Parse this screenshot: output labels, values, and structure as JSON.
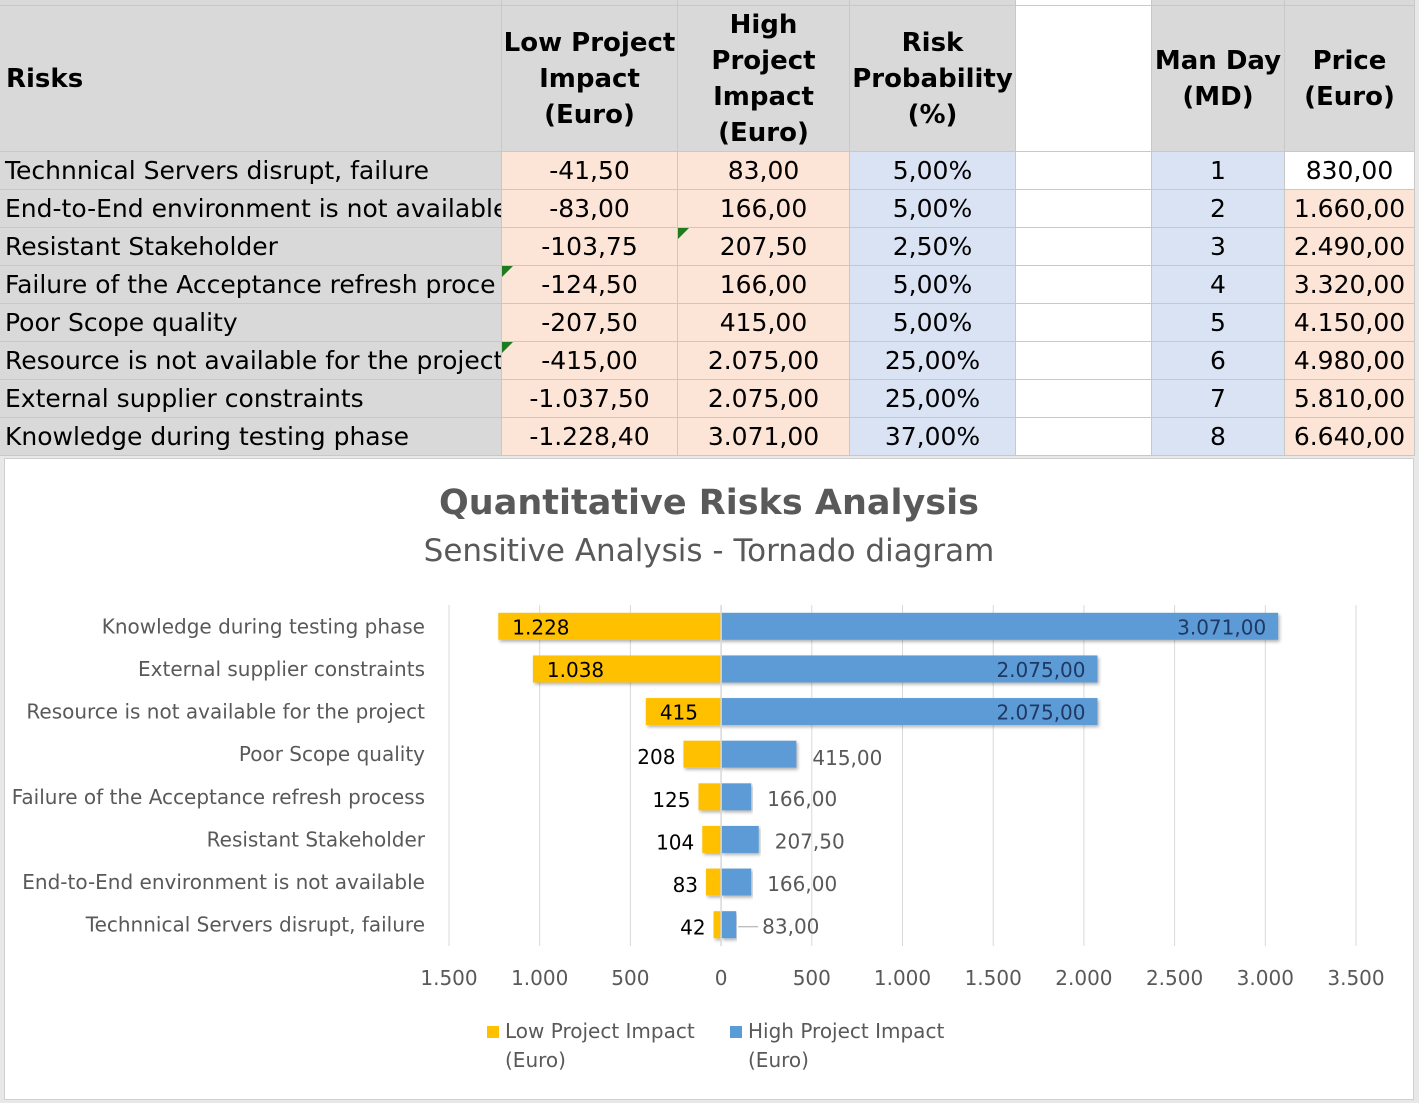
{
  "table": {
    "headers": {
      "risks": "Risks",
      "low": "Low Project Impact (Euro)",
      "high": "High Project Impact (Euro)",
      "prob": "Risk Probability (%)",
      "md": "Man Day (MD)",
      "price": "Price (Euro)"
    },
    "rows": [
      {
        "risk": "Technnical Servers disrupt, failure",
        "low": "-41,50",
        "high": "83,00",
        "prob": "5,00%",
        "md": "1",
        "price": "830,00"
      },
      {
        "risk": "End-to-End environment is not available",
        "low": "-83,00",
        "high": "166,00",
        "prob": "5,00%",
        "md": "2",
        "price": "1.660,00"
      },
      {
        "risk": "Resistant Stakeholder",
        "low": "-103,75",
        "high": "207,50",
        "prob": "2,50%",
        "md": "3",
        "price": "2.490,00"
      },
      {
        "risk": "Failure of the Acceptance refresh proce",
        "low": "-124,50",
        "high": "166,00",
        "prob": "5,00%",
        "md": "4",
        "price": "3.320,00"
      },
      {
        "risk": "Poor Scope quality",
        "low": "-207,50",
        "high": "415,00",
        "prob": "5,00%",
        "md": "5",
        "price": "4.150,00"
      },
      {
        "risk": "Resource is not available for the project",
        "low": "-415,00",
        "high": "2.075,00",
        "prob": "25,00%",
        "md": "6",
        "price": "4.980,00"
      },
      {
        "risk": "External supplier constraints",
        "low": "-1.037,50",
        "high": "2.075,00",
        "prob": "25,00%",
        "md": "7",
        "price": "5.810,00"
      },
      {
        "risk": "Knowledge during testing phase",
        "low": "-1.228,40",
        "high": "3.071,00",
        "prob": "37,00%",
        "md": "8",
        "price": "6.640,00"
      }
    ]
  },
  "chart_data": {
    "type": "bar",
    "orientation": "horizontal-tornado",
    "title": "Quantitative Risks Analysis",
    "subtitle": "Sensitive Analysis - Tornado diagram",
    "categories": [
      "Knowledge during testing phase",
      "External supplier constraints",
      "Resource is not available for the project",
      "Poor Scope quality",
      "Failure of the Acceptance refresh process",
      "Resistant Stakeholder",
      "End-to-End environment is not available",
      "Technnical Servers disrupt, failure"
    ],
    "series": [
      {
        "name": "Low Project Impact (Euro)",
        "color": "#ffc000",
        "values": [
          -1228.4,
          -1037.5,
          -415,
          -207.5,
          -124.5,
          -103.75,
          -83,
          -41.5
        ],
        "labels": [
          "1.228",
          "1.038",
          "415",
          "208",
          "125",
          "104",
          "83",
          "42"
        ]
      },
      {
        "name": "High Project Impact (Euro)",
        "color": "#5b9bd5",
        "values": [
          3071,
          2075,
          2075,
          415,
          166,
          207.5,
          166,
          83
        ],
        "labels": [
          "3.071,00",
          "2.075,00",
          "2.075,00",
          "415,00",
          "166,00",
          "207,50",
          "166,00",
          "83,00"
        ]
      }
    ],
    "xlim": [
      -1500,
      3500
    ],
    "xticks": [
      -1500,
      -1000,
      -500,
      0,
      500,
      1000,
      1500,
      2000,
      2500,
      3000,
      3500
    ],
    "xtick_labels": [
      "1.500",
      "1.000",
      "500",
      "0",
      "500",
      "1.000",
      "1.500",
      "2.000",
      "2.500",
      "3.000",
      "3.500"
    ],
    "legend": {
      "position": "bottom",
      "entries": [
        {
          "line1": "Low Project Impact",
          "line2": "(Euro)",
          "color": "#ffc000"
        },
        {
          "line1": "High Project Impact",
          "line2": "(Euro)",
          "color": "#5b9bd5"
        }
      ]
    },
    "grid": true
  }
}
